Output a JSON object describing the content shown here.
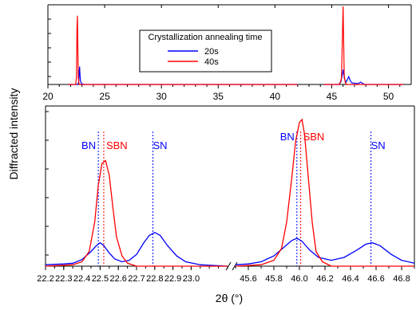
{
  "chart_data": [
    {
      "type": "line",
      "xlabel": "",
      "ylabel": "",
      "xticks": [
        20,
        25,
        30,
        35,
        40,
        45,
        50
      ],
      "xlim": [
        20,
        52
      ],
      "axis_break": [
        42,
        44
      ],
      "legend": {
        "title": "Crystallization annealing time",
        "placement": "top-center"
      },
      "series": [
        {
          "name": "20s",
          "color": "#0000ff",
          "points": [
            [
              21.8,
              0
            ],
            [
              22.55,
              0
            ],
            [
              22.68,
              0.01
            ],
            [
              22.73,
              0.06
            ],
            [
              22.76,
              0.18
            ],
            [
              22.79,
              0.23
            ],
            [
              22.82,
              0.14
            ],
            [
              22.86,
              0.05
            ],
            [
              22.95,
              0.01
            ],
            [
              23.2,
              0
            ],
            [
              42,
              0
            ],
            [
              44.3,
              0
            ],
            [
              45.6,
              0
            ],
            [
              45.8,
              0.03
            ],
            [
              45.88,
              0.09
            ],
            [
              45.95,
              0.14
            ],
            [
              46.0,
              0.19
            ],
            [
              46.04,
              0.15
            ],
            [
              46.12,
              0.07
            ],
            [
              46.25,
              0.03
            ],
            [
              46.4,
              0.07
            ],
            [
              46.5,
              0.1
            ],
            [
              46.6,
              0.06
            ],
            [
              46.75,
              0.02
            ],
            [
              47.3,
              0.01
            ],
            [
              47.55,
              0.03
            ],
            [
              47.65,
              0.02
            ],
            [
              47.9,
              0
            ],
            [
              51.3,
              0
            ]
          ]
        },
        {
          "name": "40s",
          "color": "#ff0000",
          "points": [
            [
              21.8,
              0
            ],
            [
              22.45,
              0
            ],
            [
              22.52,
              0.1
            ],
            [
              22.56,
              0.72
            ],
            [
              22.6,
              0.88
            ],
            [
              22.64,
              0.45
            ],
            [
              22.68,
              0.08
            ],
            [
              22.75,
              0
            ],
            [
              42,
              0
            ],
            [
              44.3,
              0
            ],
            [
              45.7,
              0
            ],
            [
              45.85,
              0.08
            ],
            [
              45.93,
              0.55
            ],
            [
              46.0,
              1.0
            ],
            [
              46.05,
              0.55
            ],
            [
              46.1,
              0.12
            ],
            [
              46.2,
              0.02
            ],
            [
              46.3,
              0
            ],
            [
              51.3,
              0
            ]
          ]
        }
      ]
    },
    {
      "type": "line",
      "xlabel": "2θ (°)",
      "ylabel": "Diffracted intensity",
      "segments": [
        {
          "xlim": [
            22.2,
            23.2
          ],
          "xticks": [
            "22.2",
            "22.3",
            "22.4",
            "22.5",
            "22.6",
            "22.7",
            "22.8",
            "22.9",
            "23.0"
          ]
        },
        {
          "xlim": [
            45.5,
            46.9
          ],
          "xticks": [
            "45.6",
            "45.8",
            "46.0",
            "46.2",
            "46.4",
            "46.6",
            "46.8"
          ]
        }
      ],
      "reference_lines": [
        {
          "label": "BN",
          "x": 22.49,
          "color": "#0000ff"
        },
        {
          "label": "SBN",
          "x": 22.52,
          "color": "#ff0000"
        },
        {
          "label": "SN",
          "x": 22.79,
          "color": "#0000ff"
        },
        {
          "label": "BN",
          "x": 45.98,
          "color": "#0000ff"
        },
        {
          "label": "SBN",
          "x": 46.01,
          "color": "#ff0000"
        },
        {
          "label": "SN",
          "x": 46.56,
          "color": "#0000ff"
        }
      ],
      "series": [
        {
          "name": "20s",
          "color": "#0000ff",
          "points": [
            [
              22.2,
              0.01
            ],
            [
              22.3,
              0.015
            ],
            [
              22.35,
              0.02
            ],
            [
              22.4,
              0.045
            ],
            [
              22.45,
              0.1
            ],
            [
              22.48,
              0.14
            ],
            [
              22.5,
              0.16
            ],
            [
              22.52,
              0.14
            ],
            [
              22.55,
              0.09
            ],
            [
              22.58,
              0.05
            ],
            [
              22.62,
              0.03
            ],
            [
              22.66,
              0.04
            ],
            [
              22.7,
              0.08
            ],
            [
              22.74,
              0.16
            ],
            [
              22.77,
              0.21
            ],
            [
              22.8,
              0.23
            ],
            [
              22.83,
              0.21
            ],
            [
              22.87,
              0.14
            ],
            [
              22.92,
              0.07
            ],
            [
              22.97,
              0.03
            ],
            [
              23.05,
              0.01
            ],
            [
              23.2,
              0
            ],
            [
              45.5,
              0.01
            ],
            [
              45.6,
              0.015
            ],
            [
              45.7,
              0.03
            ],
            [
              45.8,
              0.07
            ],
            [
              45.88,
              0.13
            ],
            [
              45.94,
              0.175
            ],
            [
              45.98,
              0.19
            ],
            [
              46.02,
              0.17
            ],
            [
              46.08,
              0.11
            ],
            [
              46.15,
              0.06
            ],
            [
              46.25,
              0.04
            ],
            [
              46.35,
              0.06
            ],
            [
              46.45,
              0.11
            ],
            [
              46.52,
              0.15
            ],
            [
              46.57,
              0.16
            ],
            [
              46.63,
              0.14
            ],
            [
              46.72,
              0.08
            ],
            [
              46.8,
              0.04
            ],
            [
              46.9,
              0.02
            ]
          ]
        },
        {
          "name": "40s",
          "color": "#ff0000",
          "points": [
            [
              22.2,
              0
            ],
            [
              22.35,
              0.01
            ],
            [
              22.4,
              0.03
            ],
            [
              22.44,
              0.1
            ],
            [
              22.47,
              0.3
            ],
            [
              22.49,
              0.55
            ],
            [
              22.51,
              0.7
            ],
            [
              22.53,
              0.72
            ],
            [
              22.55,
              0.62
            ],
            [
              22.57,
              0.4
            ],
            [
              22.59,
              0.2
            ],
            [
              22.62,
              0.07
            ],
            [
              22.65,
              0.02
            ],
            [
              22.7,
              0
            ],
            [
              23.2,
              0
            ],
            [
              45.5,
              0
            ],
            [
              45.7,
              0.01
            ],
            [
              45.8,
              0.04
            ],
            [
              45.86,
              0.12
            ],
            [
              45.9,
              0.3
            ],
            [
              45.94,
              0.6
            ],
            [
              45.97,
              0.85
            ],
            [
              46.0,
              0.98
            ],
            [
              46.02,
              1.0
            ],
            [
              46.04,
              0.9
            ],
            [
              46.07,
              0.6
            ],
            [
              46.1,
              0.3
            ],
            [
              46.13,
              0.1
            ],
            [
              46.18,
              0.03
            ],
            [
              46.25,
              0
            ],
            [
              46.9,
              0
            ]
          ]
        }
      ]
    }
  ]
}
